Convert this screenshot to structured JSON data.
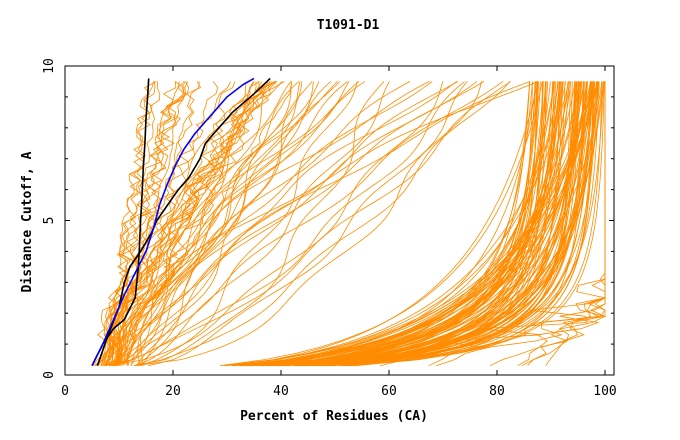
{
  "chart_data": {
    "type": "line",
    "title": "T1091-D1",
    "xlabel": "Percent of Residues (CA)",
    "ylabel": "Distance Cutoff, A",
    "xlim": [
      0,
      100
    ],
    "ylim": [
      0,
      10
    ],
    "x_ticks": [
      0,
      20,
      40,
      60,
      80,
      100
    ],
    "y_ticks": [
      0,
      5,
      10
    ],
    "grid": false,
    "colors": {
      "orange": "#ff8c00",
      "black": "#000000",
      "blue": "#0000ff",
      "axis": "#000000"
    },
    "highlight_series": [
      {
        "color": "black",
        "x": [
          5,
          7,
          9,
          11,
          13,
          13.6,
          13.8,
          14,
          14.2,
          14.5,
          14.8,
          15,
          15.3,
          15.5
        ],
        "y": [
          0.3,
          1,
          1.5,
          1.8,
          2.5,
          3.5,
          4.2,
          5,
          5.6,
          6.7,
          7.5,
          8.3,
          9,
          9.6
        ]
      },
      {
        "color": "black",
        "x": [
          6,
          8,
          10,
          11,
          12,
          14,
          16,
          17,
          19,
          21,
          23,
          25,
          26,
          28,
          31,
          35,
          38
        ],
        "y": [
          0.3,
          1.3,
          2.2,
          3,
          3.5,
          4,
          4.6,
          5,
          5.5,
          6,
          6.4,
          7,
          7.5,
          7.9,
          8.5,
          9.1,
          9.6
        ]
      },
      {
        "color": "blue",
        "x": [
          5,
          7,
          9,
          11,
          13,
          15,
          16.5,
          17.5,
          19,
          20.5,
          22,
          24,
          26,
          28,
          30,
          33,
          35
        ],
        "y": [
          0.3,
          1,
          1.8,
          2.6,
          3.3,
          4,
          4.8,
          5.5,
          6.2,
          6.8,
          7.3,
          7.8,
          8.2,
          8.6,
          9,
          9.4,
          9.6
        ]
      }
    ]
  }
}
